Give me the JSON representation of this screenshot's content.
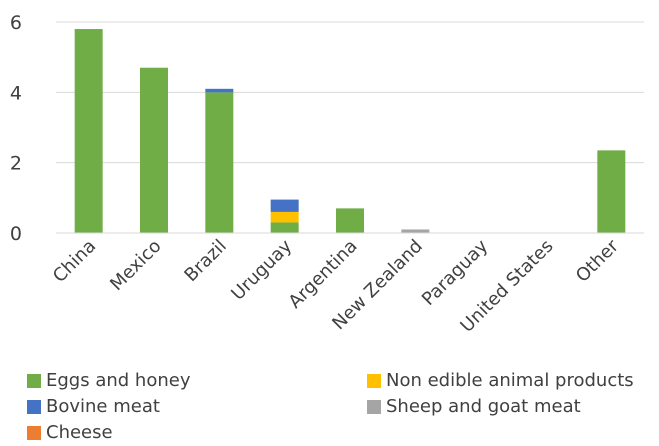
{
  "chart_data": {
    "type": "bar",
    "stacked": true,
    "categories": [
      "China",
      "Mexico",
      "Brazil",
      "Uruguay",
      "Argentina",
      "New Zealand",
      "Paraguay",
      "United States",
      "Other"
    ],
    "series": [
      {
        "name": "Eggs and honey",
        "color": "#70AD47",
        "values": [
          5.8,
          4.7,
          4.0,
          0.3,
          0.7,
          0.0,
          0.0,
          0.0,
          2.35
        ]
      },
      {
        "name": "Non edible animal products",
        "color": "#FFC000",
        "values": [
          0.0,
          0.0,
          0.0,
          0.3,
          0.0,
          0.0,
          0.0,
          0.0,
          0.0
        ]
      },
      {
        "name": "Bovine meat",
        "color": "#4472C4",
        "values": [
          0.0,
          0.0,
          0.1,
          0.35,
          0.0,
          0.0,
          0.0,
          0.0,
          0.0
        ]
      },
      {
        "name": "Sheep and goat meat",
        "color": "#A5A5A5",
        "values": [
          0.0,
          0.0,
          0.0,
          0.0,
          0.0,
          0.1,
          0.0,
          0.0,
          0.0
        ]
      },
      {
        "name": "Cheese",
        "color": "#ED7D31",
        "values": [
          0.0,
          0.0,
          0.0,
          0.0,
          0.0,
          0.0,
          0.0,
          0.0,
          0.0
        ]
      }
    ],
    "yticks": [
      "0",
      "2",
      "4",
      "6"
    ],
    "ylim": [
      0,
      6
    ],
    "grid": true,
    "legend_position": "bottom"
  }
}
